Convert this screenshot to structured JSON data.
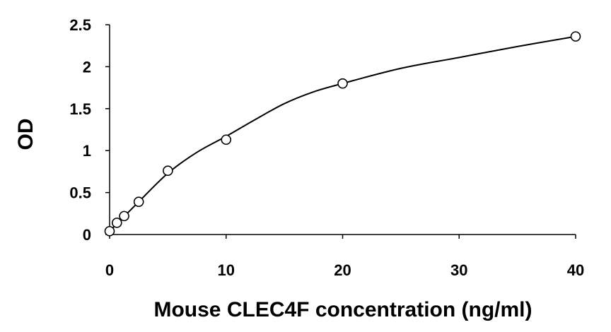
{
  "chart_data": {
    "type": "scatter",
    "title": "",
    "xlabel": "Mouse CLEC4F concentration (ng/ml)",
    "ylabel": "OD",
    "xlim": [
      0,
      40
    ],
    "ylim": [
      0,
      2.5
    ],
    "xticks": [
      "0",
      "10",
      "20",
      "30",
      "40"
    ],
    "yticks": [
      "0",
      "0.5",
      "1",
      "1.5",
      "2",
      "2.5"
    ],
    "grid": false,
    "legend": "none",
    "series": [
      {
        "marker": "open-circle",
        "x": [
          0,
          0.625,
          1.25,
          2.5,
          5,
          10,
          20,
          40
        ],
        "y": [
          0.04,
          0.14,
          0.22,
          0.39,
          0.76,
          1.13,
          1.8,
          2.36
        ]
      }
    ],
    "fit_curve": {
      "style": "smooth-line",
      "x": [
        0,
        2.5,
        5,
        7.5,
        10,
        12.5,
        15,
        17.5,
        20,
        25,
        30,
        35,
        40
      ],
      "y": [
        0.04,
        0.39,
        0.73,
        0.98,
        1.17,
        1.37,
        1.56,
        1.7,
        1.8,
        1.98,
        2.11,
        2.24,
        2.36
      ]
    }
  }
}
